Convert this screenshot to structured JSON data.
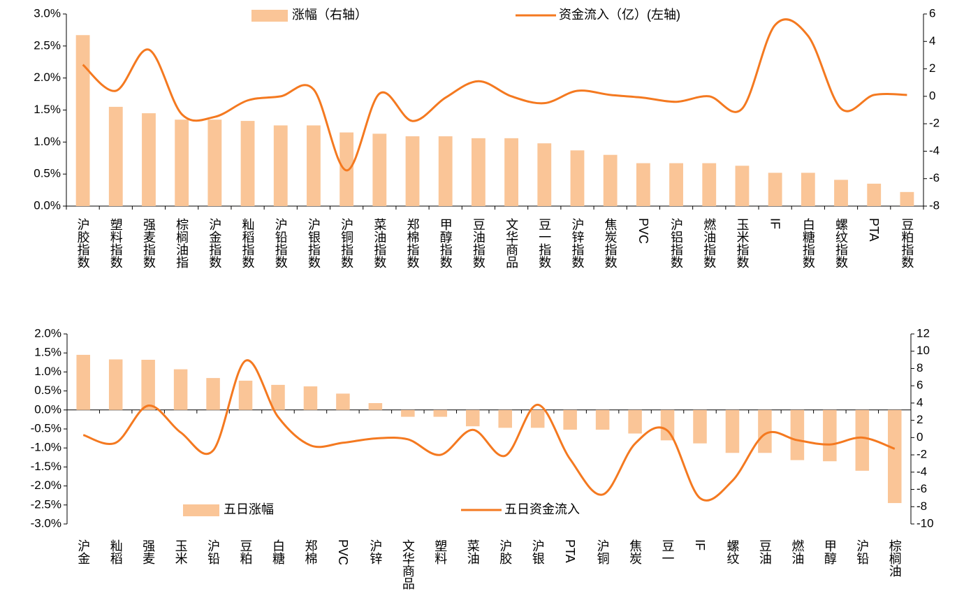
{
  "chart_data": [
    {
      "type": "combo",
      "categories": [
        "沪胶指数",
        "塑料指数",
        "强麦指数",
        "棕榈油指",
        "沪金指数",
        "籼稻指数",
        "沪铅指数",
        "沪银指数",
        "沪铜指数",
        "菜油指数",
        "郑棉指数",
        "甲醇指数",
        "豆油指数",
        "文华商品",
        "豆一指数",
        "沪锌指数",
        "焦炭指数",
        "PVC",
        "沪铝指数",
        "燃油指数",
        "玉米指数",
        "IF",
        "白糖指数",
        "螺纹指数",
        "PTA",
        "豆粕指数"
      ],
      "series": [
        {
          "name": "涨幅（右轴）",
          "kind": "bar",
          "color": "#fac597",
          "values": [
            2.67,
            1.55,
            1.45,
            1.35,
            1.35,
            1.33,
            1.26,
            1.26,
            1.15,
            1.13,
            1.09,
            1.09,
            1.06,
            1.06,
            0.98,
            0.87,
            0.8,
            0.67,
            0.67,
            0.67,
            0.63,
            0.52,
            0.52,
            0.41,
            0.35,
            0.22
          ]
        },
        {
          "name": "资金流入（亿）(左轴)",
          "kind": "line",
          "axis": "y2",
          "color": "#f47920",
          "values": [
            2.3,
            0.4,
            3.4,
            -1.3,
            -1.5,
            -0.3,
            0,
            0.5,
            -5.4,
            0.2,
            -1.8,
            -0.1,
            1.1,
            0,
            -0.5,
            0.4,
            0.1,
            -0.1,
            -0.4,
            0,
            -0.9,
            5.2,
            4.4,
            -0.9,
            0.1,
            0.1
          ]
        }
      ],
      "ylim": [
        0,
        3
      ],
      "yticks": [
        {
          "value": 0,
          "label": "0.0%"
        },
        {
          "value": 0.5,
          "label": "0.5%"
        },
        {
          "value": 1,
          "label": "1.0%"
        },
        {
          "value": 1.5,
          "label": "1.5%"
        },
        {
          "value": 2,
          "label": "2.0%"
        },
        {
          "value": 2.5,
          "label": "2.5%"
        },
        {
          "value": 3,
          "label": "3.0%"
        }
      ],
      "y2lim": [
        -8,
        6
      ],
      "y2ticks": [
        -8,
        -6,
        -4,
        -2,
        0,
        2,
        4,
        6
      ],
      "legend": "top"
    },
    {
      "type": "combo",
      "categories": [
        "沪金",
        "籼稻",
        "强麦",
        "玉米",
        "沪铅",
        "豆粕",
        "白糖",
        "郑棉",
        "PVC",
        "沪锌",
        "文华商品",
        "塑料",
        "菜油",
        "沪胶",
        "沪银",
        "PTA",
        "沪铜",
        "焦炭",
        "豆一",
        "IF",
        "螺纹",
        "豆油",
        "燃油",
        "甲醇",
        "沪铅",
        "棕榈油"
      ],
      "series": [
        {
          "name": "五日涨幅",
          "kind": "bar",
          "color": "#fac597",
          "values": [
            1.45,
            1.33,
            1.32,
            1.07,
            0.84,
            0.77,
            0.66,
            0.62,
            0.43,
            0.18,
            -0.18,
            -0.18,
            -0.43,
            -0.47,
            -0.47,
            -0.52,
            -0.52,
            -0.62,
            -0.8,
            -0.88,
            -1.13,
            -1.13,
            -1.32,
            -1.35,
            -1.6,
            -2.45
          ]
        },
        {
          "name": "五日资金流入",
          "kind": "line",
          "axis": "y2",
          "color": "#f47920",
          "values": [
            0.3,
            -0.6,
            3.7,
            0.6,
            -1.5,
            8.9,
            2.4,
            -0.9,
            -0.6,
            -0.1,
            -0.2,
            -2.0,
            0.9,
            -2.1,
            3.8,
            -2.5,
            -6.6,
            -0.7,
            0.8,
            -7.0,
            -5.0,
            0.4,
            -0.3,
            -0.8,
            0,
            -1.3
          ]
        }
      ],
      "ylim": [
        -3,
        2
      ],
      "yticks": [
        {
          "value": -3,
          "label": "-3.0%"
        },
        {
          "value": -2.5,
          "label": "-2.5%"
        },
        {
          "value": -2,
          "label": "-2.0%"
        },
        {
          "value": -1.5,
          "label": "-1.5%"
        },
        {
          "value": -1,
          "label": "-1.0%"
        },
        {
          "value": -0.5,
          "label": "-0.5%"
        },
        {
          "value": 0,
          "label": "0.0%"
        },
        {
          "value": 0.5,
          "label": "0.5%"
        },
        {
          "value": 1,
          "label": "1.0%"
        },
        {
          "value": 1.5,
          "label": "1.5%"
        },
        {
          "value": 2,
          "label": "2.0%"
        }
      ],
      "y2lim": [
        -10,
        12
      ],
      "y2ticks": [
        -10,
        -8,
        -6,
        -4,
        -2,
        0,
        2,
        4,
        6,
        8,
        10,
        12
      ],
      "legend": "lower left"
    }
  ]
}
